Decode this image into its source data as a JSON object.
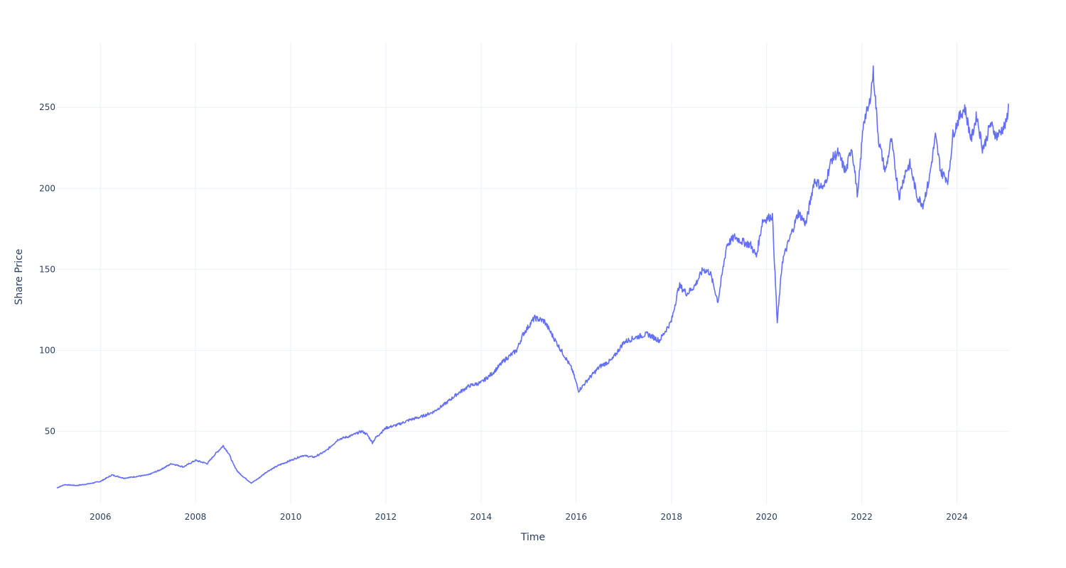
{
  "chart_data": {
    "type": "line",
    "xlabel": "Time",
    "ylabel": "Share Price",
    "xlim": [
      "2005-02-01",
      "2025-02-05"
    ],
    "ylim": [
      5,
      290
    ],
    "x_ticks": [
      "2006",
      "2008",
      "2010",
      "2012",
      "2014",
      "2016",
      "2018",
      "2020",
      "2022",
      "2024"
    ],
    "y_ticks": [
      50,
      100,
      150,
      200,
      250
    ],
    "grid": true,
    "legend": "none",
    "line_color": "#636efa",
    "series": [
      {
        "x": [
          "2005-02-01",
          "2005-04-01",
          "2005-07-01",
          "2005-10-01",
          "2006-01-01",
          "2006-04-01",
          "2006-07-01",
          "2006-10-01",
          "2007-01-01",
          "2007-04-01",
          "2007-07-01",
          "2007-10-01",
          "2008-01-01",
          "2008-04-01",
          "2008-06-01",
          "2008-08-01",
          "2008-09-15",
          "2008-10-15",
          "2008-11-20",
          "2009-01-01",
          "2009-03-05",
          "2009-05-01",
          "2009-07-01",
          "2009-10-01",
          "2010-01-01",
          "2010-04-01",
          "2010-07-01",
          "2010-10-01",
          "2011-01-01",
          "2011-04-01",
          "2011-07-01",
          "2011-08-10",
          "2011-09-20",
          "2011-10-15",
          "2012-01-01",
          "2012-04-01",
          "2012-07-01",
          "2012-10-01",
          "2013-01-01",
          "2013-04-01",
          "2013-07-01",
          "2013-10-01",
          "2014-01-01",
          "2014-04-01",
          "2014-07-01",
          "2014-10-01",
          "2014-11-20",
          "2015-02-15",
          "2015-05-01",
          "2015-08-01",
          "2015-10-15",
          "2015-12-01",
          "2016-01-20",
          "2016-04-01",
          "2016-07-01",
          "2016-10-01",
          "2017-01-01",
          "2017-04-01",
          "2017-07-01",
          "2017-10-01",
          "2018-01-01",
          "2018-03-01",
          "2018-05-01",
          "2018-07-01",
          "2018-09-01",
          "2018-10-25",
          "2018-12-24",
          "2019-03-01",
          "2019-05-01",
          "2019-07-01",
          "2019-09-01",
          "2019-10-15",
          "2019-12-01",
          "2020-02-15",
          "2020-03-23",
          "2020-05-01",
          "2020-07-01",
          "2020-09-01",
          "2020-10-30",
          "2021-01-01",
          "2021-03-15",
          "2021-05-15",
          "2021-07-01",
          "2021-09-01",
          "2021-10-15",
          "2021-12-01",
          "2022-01-15",
          "2022-02-25",
          "2022-03-30",
          "2022-05-10",
          "2022-07-01",
          "2022-08-15",
          "2022-10-15",
          "2022-12-01",
          "2023-01-05",
          "2023-03-01",
          "2023-04-15",
          "2023-06-01",
          "2023-07-20",
          "2023-09-01",
          "2023-10-27",
          "2023-12-01",
          "2024-01-15",
          "2024-03-01",
          "2024-04-20",
          "2024-06-01",
          "2024-07-15",
          "2024-08-05",
          "2024-09-15",
          "2024-10-31",
          "2024-12-01",
          "2025-01-13",
          "2025-02-03"
        ],
        "y": [
          15,
          17,
          16.5,
          17.5,
          19,
          23,
          21,
          22,
          23,
          26,
          30,
          28,
          32,
          30,
          36,
          41,
          36,
          30,
          25,
          22,
          18,
          21,
          25,
          29,
          32,
          35,
          34,
          38,
          45,
          47,
          50,
          48,
          43,
          46,
          52,
          54,
          57,
          59,
          62,
          67,
          73,
          78,
          80,
          86,
          94,
          100,
          110,
          120,
          118,
          105,
          95,
          88,
          75,
          82,
          90,
          94,
          105,
          108,
          110,
          106,
          118,
          140,
          135,
          140,
          150,
          148,
          130,
          165,
          170,
          167,
          165,
          158,
          180,
          183,
          117,
          155,
          170,
          185,
          178,
          205,
          200,
          218,
          222,
          210,
          226,
          195,
          242,
          250,
          272,
          230,
          210,
          230,
          195,
          210,
          215,
          195,
          190,
          205,
          232,
          210,
          205,
          233,
          243,
          250,
          230,
          245,
          225,
          228,
          240,
          232,
          235,
          240,
          252
        ]
      }
    ]
  }
}
